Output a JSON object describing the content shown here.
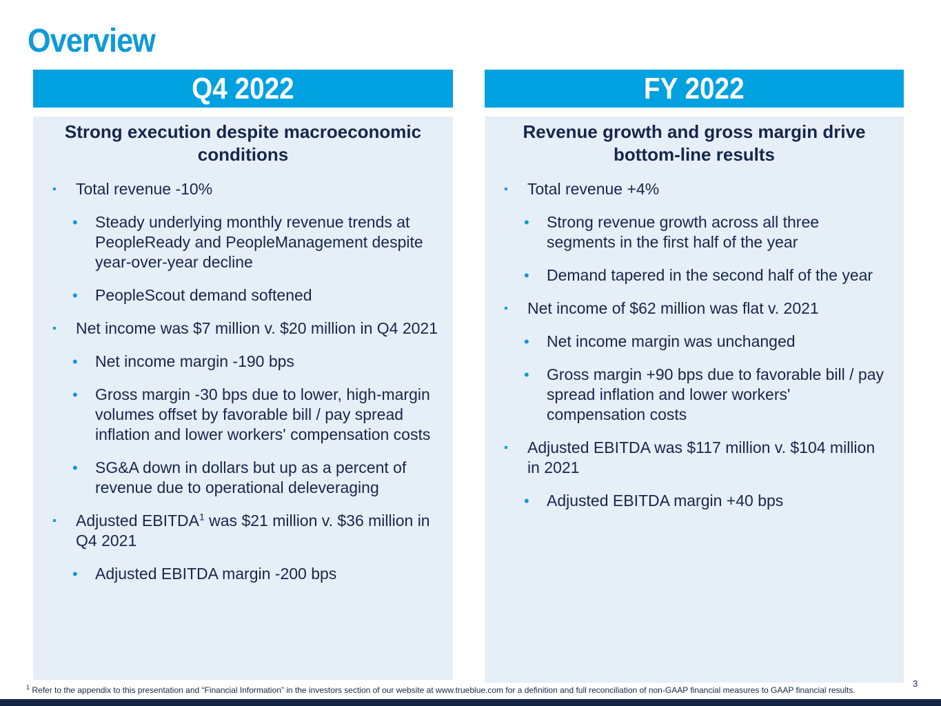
{
  "page": {
    "title": "Overview",
    "page_number": "3"
  },
  "left": {
    "header": "Q4 2022",
    "heading": "Strong execution despite macroeconomic conditions",
    "bullets": {
      "b0": "Total revenue -10%",
      "b1": "Steady underlying monthly revenue trends at PeopleReady and PeopleManagement despite year-over-year decline",
      "b2": "PeopleScout demand softened",
      "b3": "Net income was $7 million v. $20 million in Q4 2021",
      "b4": "Net income margin -190 bps",
      "b5": "Gross margin -30 bps due to lower, high-margin volumes offset by favorable bill / pay spread inflation and lower workers' compensation costs",
      "b6": "SG&A down in dollars but up as a percent of revenue due to operational deleveraging",
      "b7_pre": "Adjusted EBITDA",
      "b7_sup": "1",
      "b7_post": " was $21 million v. $36 million in Q4 2021",
      "b8": "Adjusted EBITDA margin -200 bps"
    }
  },
  "right": {
    "header": "FY 2022",
    "heading": "Revenue growth and gross margin drive bottom-line results",
    "bullets": {
      "b0": "Total revenue +4%",
      "b1": "Strong revenue growth across all three segments in the first half of the year",
      "b2": "Demand tapered in the second half of the year",
      "b3": "Net income of $62 million was flat v. 2021",
      "b4": "Net income margin was unchanged",
      "b5": "Gross margin +90 bps due to favorable bill / pay spread inflation and lower workers' compensation costs",
      "b6": "Adjusted EBITDA was $117 million v. $104 million in 2021",
      "b7": "Adjusted EBITDA margin +40 bps"
    }
  },
  "footnote": {
    "marker": "1",
    "text": " Refer to the appendix to this presentation and “Financial Information” in the investors section of our website at www.trueblue.com for a definition and full reconciliation of non-GAAP financial measures to GAAP financial results."
  },
  "colors": {
    "title": "#0e9ad8",
    "header_bg": "#00a1e0",
    "box_bg": "#e6eef8",
    "text": "#16264b",
    "bottom_bar": "#142544"
  }
}
